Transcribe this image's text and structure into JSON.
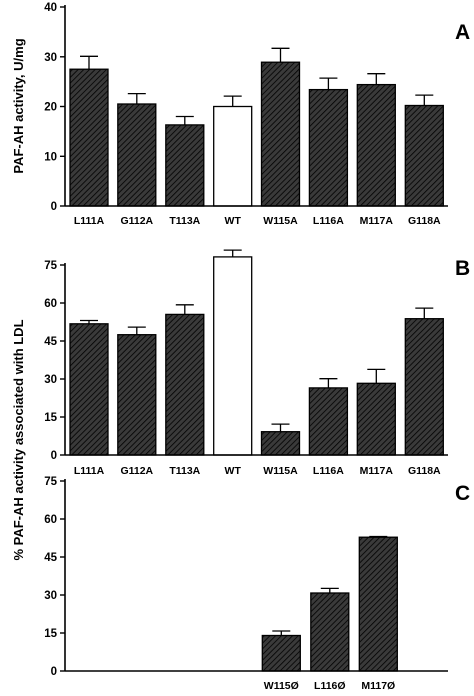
{
  "chart_data": [
    {
      "panel": "A",
      "type": "bar",
      "ylabel": "PAF-AH activity, U/mg",
      "ylim": [
        0,
        40
      ],
      "yticks": [
        0,
        10,
        20,
        30,
        40
      ],
      "categories": [
        "L111A",
        "G112A",
        "T113A",
        "WT",
        "W115A",
        "L116A",
        "M117A",
        "G118A"
      ],
      "values": [
        27.5,
        20.5,
        16.3,
        20.0,
        28.9,
        23.4,
        24.4,
        20.2
      ],
      "errors": [
        2.6,
        2.1,
        1.7,
        2.1,
        2.8,
        2.3,
        2.2,
        2.1
      ],
      "highlight_category": "WT",
      "bar_color": "#ffffff",
      "bar_pattern": "diagonal-hatch",
      "grid": false
    },
    {
      "panel": "B",
      "type": "bar",
      "ylabel": "% PAF-AH activity associated with LDL",
      "ylim": [
        0,
        75
      ],
      "yticks": [
        0,
        15,
        30,
        45,
        60,
        75
      ],
      "categories": [
        "L111A",
        "G112A",
        "T113A",
        "WT",
        "W115A",
        "L116A",
        "M117A",
        "G118A"
      ],
      "values": [
        51.8,
        47.5,
        55.5,
        78.2,
        9.2,
        26.5,
        28.3,
        53.8
      ],
      "errors": [
        1.3,
        3.0,
        3.8,
        2.7,
        3.0,
        3.6,
        5.5,
        4.2
      ],
      "highlight_category": "WT",
      "grid": false
    },
    {
      "panel": "C",
      "type": "bar",
      "ylabel": "% PAF-AH activity associated with LDL",
      "ylim": [
        0,
        75
      ],
      "yticks": [
        0,
        15,
        30,
        45,
        60,
        75
      ],
      "categories": [
        "W115Ø",
        "L116Ø",
        "M117Ø"
      ],
      "values": [
        14.0,
        30.8,
        52.8
      ],
      "errors": [
        1.8,
        1.8,
        0.3
      ],
      "grid": false
    }
  ]
}
